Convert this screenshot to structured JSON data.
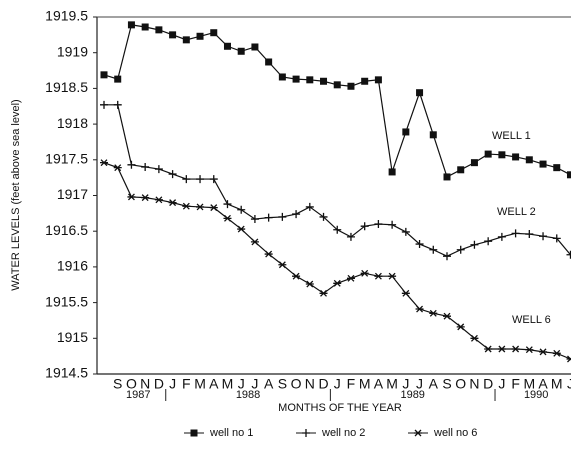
{
  "chart_data": {
    "type": "line",
    "y_label": "WATER LEVELS (feet above sea level)",
    "x_label": "MONTHS OF THE YEAR",
    "categories": [
      null,
      "S",
      "O",
      "N",
      "D",
      "J",
      "F",
      "M",
      "A",
      "M",
      "J",
      "J",
      "A",
      "S",
      "O",
      "N",
      "D",
      "J",
      "F",
      "M",
      "A",
      "M",
      "J",
      "J",
      "A",
      "S",
      "O",
      "N",
      "D",
      "J",
      "F",
      "M",
      "A",
      "M",
      "J"
    ],
    "years": [
      "1987",
      "1988",
      "1989",
      "1990"
    ],
    "ylim": [
      1914.5,
      1919.5
    ],
    "yticks": [
      1914.5,
      1915,
      1915.5,
      1916,
      1916.5,
      1917,
      1917.5,
      1918,
      1918.5,
      1919,
      1919.5
    ],
    "annotations": [
      "WELL 1",
      "WELL 2",
      "WELL 6"
    ],
    "series": [
      {
        "name": "well no 1",
        "color": "#111111",
        "marker": "square",
        "values": [
          1918.69,
          1918.63,
          1919.39,
          1919.36,
          1919.32,
          1919.25,
          1919.18,
          1919.23,
          1919.28,
          1919.09,
          1919.02,
          1919.08,
          1918.87,
          1918.66,
          1918.63,
          1918.62,
          1918.6,
          1918.55,
          1918.53,
          1918.6,
          1918.62,
          1917.33,
          1917.89,
          1918.44,
          1917.85,
          1917.26,
          1917.36,
          1917.46,
          1917.58,
          1917.57,
          1917.54,
          1917.5,
          1917.44,
          1917.39,
          1917.29
        ]
      },
      {
        "name": "well no 2",
        "color": "#111111",
        "marker": "plus",
        "values": [
          1918.27,
          1918.27,
          1917.43,
          1917.4,
          1917.37,
          1917.3,
          1917.23,
          1917.23,
          1917.23,
          1916.88,
          1916.8,
          1916.67,
          1916.69,
          1916.7,
          1916.74,
          1916.84,
          1916.7,
          1916.52,
          1916.42,
          1916.57,
          1916.6,
          1916.59,
          1916.49,
          1916.32,
          1916.24,
          1916.15,
          1916.24,
          1916.31,
          1916.36,
          1916.42,
          1916.47,
          1916.46,
          1916.43,
          1916.4,
          1916.17
        ]
      },
      {
        "name": "well no 6",
        "color": "#111111",
        "marker": "star",
        "values": [
          1917.46,
          1917.39,
          1916.98,
          1916.97,
          1916.94,
          1916.9,
          1916.85,
          1916.84,
          1916.83,
          1916.68,
          1916.53,
          1916.35,
          1916.18,
          1916.03,
          1915.87,
          1915.76,
          1915.63,
          1915.77,
          1915.84,
          1915.91,
          1915.87,
          1915.87,
          1915.63,
          1915.41,
          1915.35,
          1915.31,
          1915.16,
          1915.0,
          1914.85,
          1914.85,
          1914.85,
          1914.84,
          1914.81,
          1914.79,
          1914.71
        ]
      }
    ]
  }
}
